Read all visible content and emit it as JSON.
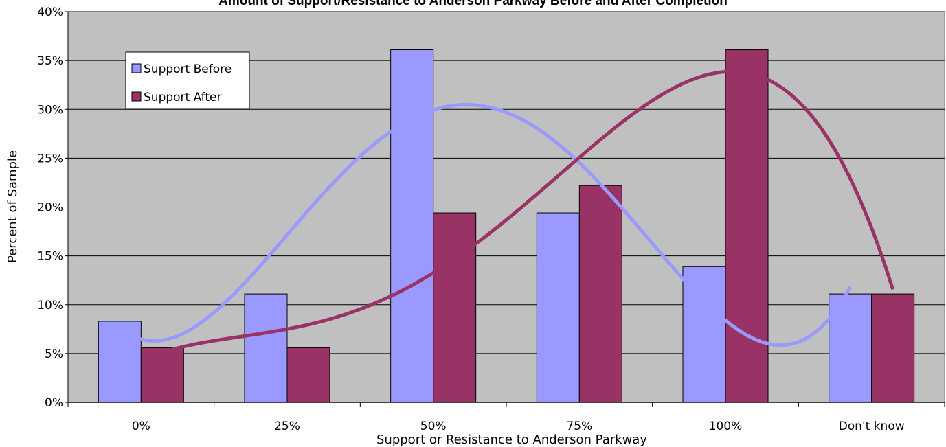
{
  "chart_data": {
    "type": "bar",
    "title": "Amount of Support/Resistance to Anderson Parkway Before and After Completion",
    "xlabel": "Support or Resistance to Anderson Parkway",
    "ylabel": "Percent of Sample",
    "categories": [
      "0%",
      "25%",
      "50%",
      "75%",
      "100%",
      "Don't know"
    ],
    "ylim": [
      0,
      40
    ],
    "ytick_labels": [
      "0%",
      "5%",
      "10%",
      "15%",
      "20%",
      "25%",
      "30%",
      "35%",
      "40%"
    ],
    "grid": true,
    "legend_position": "top-left",
    "series": [
      {
        "name": "Support Before",
        "values": [
          8.3,
          11.1,
          36.1,
          19.4,
          13.9,
          11.1
        ],
        "color": "#9999ff"
      },
      {
        "name": "Support After",
        "values": [
          5.6,
          5.6,
          19.4,
          22.2,
          36.1,
          11.1
        ],
        "color": "#993366"
      }
    ],
    "trendlines": [
      {
        "series": "Support Before",
        "type": "polynomial",
        "color": "#9999ff"
      },
      {
        "series": "Support After",
        "type": "polynomial",
        "color": "#993366"
      }
    ],
    "plot_background": "#c0c0c0"
  }
}
